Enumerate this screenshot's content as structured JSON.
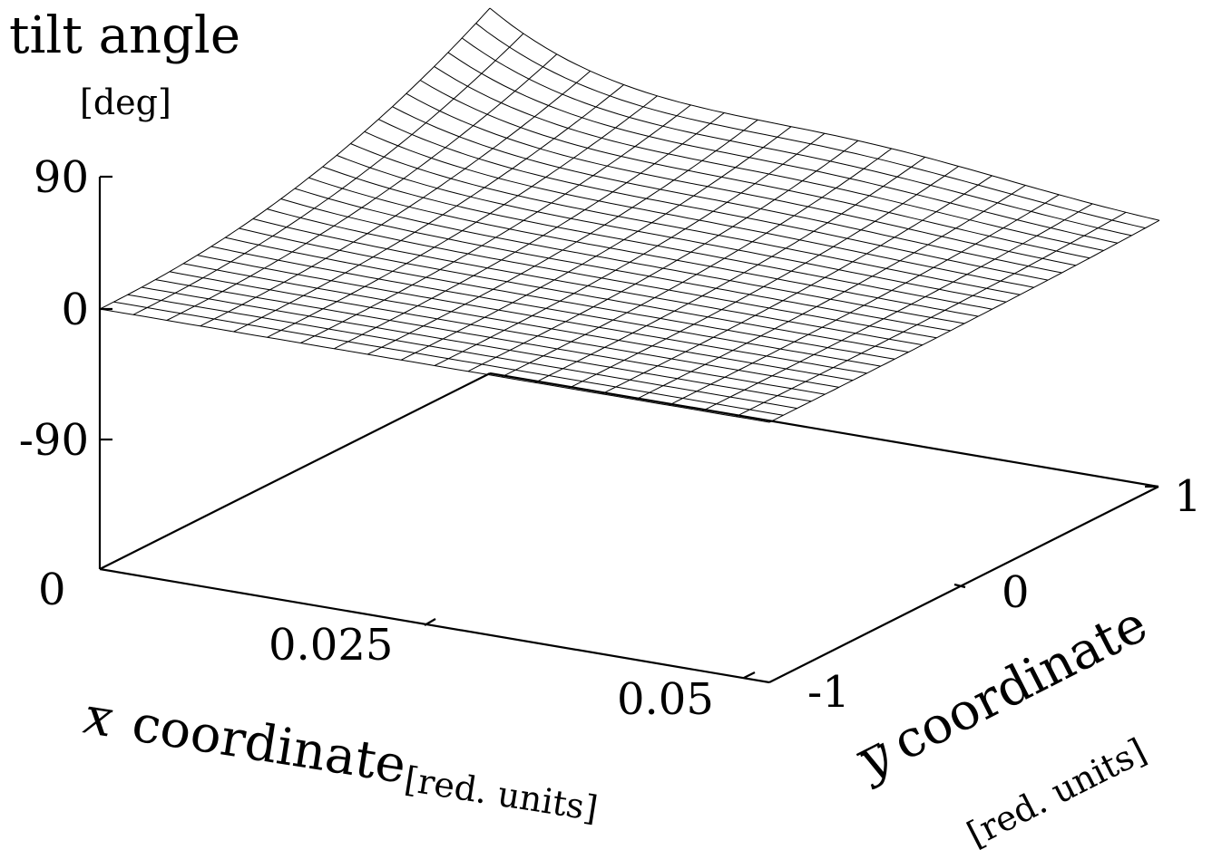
{
  "chart_data": {
    "type": "surface",
    "title": "tilt angle",
    "zunit": "[deg]",
    "xlabel": {
      "var": "x",
      "text": "coordinate",
      "unit": "[red. units]"
    },
    "ylabel": {
      "var": "y",
      "text": "coordinate",
      "unit": "[red. units]"
    },
    "xlim": [
      0,
      0.05
    ],
    "ylim": [
      -1,
      1
    ],
    "zlim": [
      -90,
      90
    ],
    "xticks": [
      "0",
      "0.025",
      "0.05"
    ],
    "yticks": [
      "-1",
      "0",
      "1"
    ],
    "zticks": [
      "90",
      "0",
      "-90"
    ],
    "grid": false,
    "surface": {
      "nx": 20,
      "ny": 28,
      "corner_values": {
        "x0_ym1": 0,
        "x0_yp1": 70,
        "x005_ym1": 0,
        "x005_yp1": 0
      }
    }
  }
}
